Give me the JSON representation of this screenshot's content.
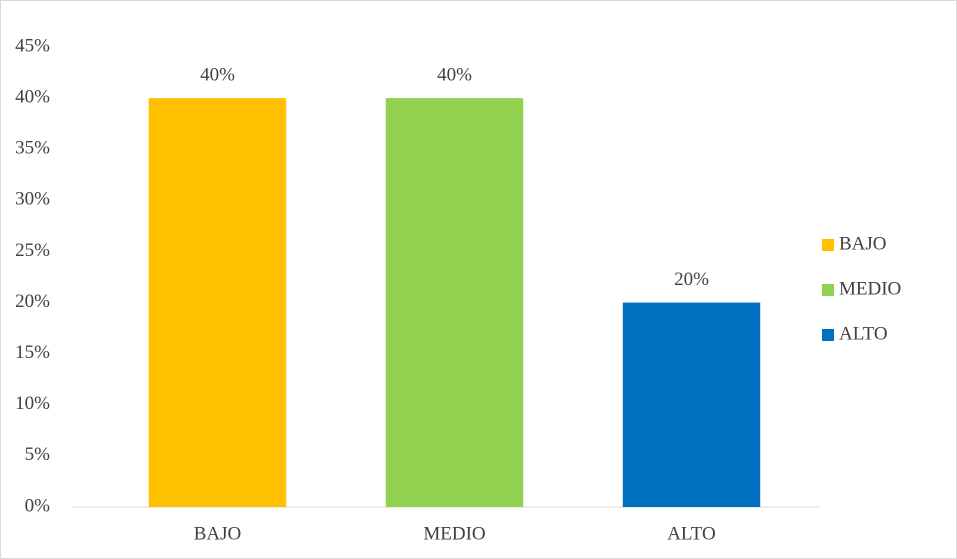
{
  "chart_data": {
    "type": "bar",
    "categories": [
      "BAJO",
      "MEDIO",
      "ALTO"
    ],
    "values": [
      40,
      40,
      20
    ],
    "value_labels": [
      "40%",
      "40%",
      "20%"
    ],
    "colors": [
      "#ffc000",
      "#92d050",
      "#0070c0"
    ],
    "ylim": [
      0,
      45
    ],
    "yticks": [
      {
        "value": 0,
        "label": "0%"
      },
      {
        "value": 5,
        "label": "5%"
      },
      {
        "value": 10,
        "label": "10%"
      },
      {
        "value": 15,
        "label": "15%"
      },
      {
        "value": 20,
        "label": "20%"
      },
      {
        "value": 25,
        "label": "25%"
      },
      {
        "value": 30,
        "label": "30%"
      },
      {
        "value": 35,
        "label": "35%"
      },
      {
        "value": 40,
        "label": "40%"
      },
      {
        "value": 45,
        "label": "45%"
      }
    ],
    "grid": false,
    "legend": "right"
  }
}
